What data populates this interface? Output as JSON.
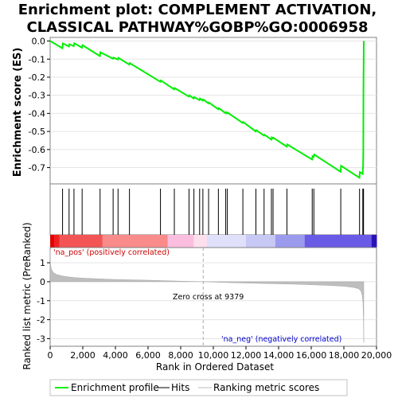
{
  "title_line1": "Enrichment plot: COMPLEMENT ACTIVATION,",
  "title_line2": "CLASSICAL PATHWAY%GOBP%GO:0006958",
  "colors": {
    "es_line": "#00ee00",
    "hit": "#000000",
    "metric_fill": "#bebebe",
    "zero_line": "#bbbbbb"
  },
  "chart_data": [
    {
      "type": "line",
      "name": "enrichment-score-panel",
      "ylabel": "Enrichment score (ES)",
      "ylim": [
        -0.79,
        0.02
      ],
      "xlim": [
        0,
        20000
      ],
      "yticks": [
        0.0,
        -0.1,
        -0.2,
        -0.3,
        -0.4,
        -0.5,
        -0.6,
        -0.7
      ],
      "ytick_labels": [
        "0.0",
        "-0.1",
        "-0.2",
        "-0.3",
        "-0.4",
        "-0.5",
        "-0.6",
        "-0.7"
      ],
      "series": [
        {
          "name": "Enrichment profile",
          "x": [
            0,
            750,
            780,
            1150,
            1180,
            1450,
            1480,
            1950,
            1980,
            3050,
            3080,
            3850,
            3880,
            4150,
            4180,
            4850,
            4880,
            6750,
            6780,
            7600,
            7630,
            8500,
            8530,
            8800,
            8830,
            9150,
            9180,
            9350,
            9380,
            9700,
            9730,
            10300,
            10330,
            10750,
            10780,
            10850,
            10880,
            11800,
            11830,
            12600,
            12630,
            13100,
            13130,
            13550,
            13580,
            13650,
            13680,
            14500,
            14530,
            16050,
            16080,
            16150,
            16180,
            17800,
            17830,
            18950,
            18980,
            19150,
            19180,
            19190,
            19200,
            19210,
            19220
          ],
          "y": [
            0.0,
            -0.04,
            -0.013,
            -0.03,
            -0.018,
            -0.028,
            -0.012,
            -0.037,
            -0.023,
            -0.083,
            -0.062,
            -0.098,
            -0.092,
            -0.102,
            -0.093,
            -0.13,
            -0.122,
            -0.225,
            -0.218,
            -0.267,
            -0.26,
            -0.307,
            -0.3,
            -0.318,
            -0.31,
            -0.327,
            -0.318,
            -0.329,
            -0.323,
            -0.345,
            -0.34,
            -0.377,
            -0.371,
            -0.399,
            -0.394,
            -0.4,
            -0.396,
            -0.453,
            -0.448,
            -0.5,
            -0.493,
            -0.523,
            -0.518,
            -0.545,
            -0.533,
            -0.538,
            -0.535,
            -0.584,
            -0.572,
            -0.655,
            -0.637,
            -0.641,
            -0.628,
            -0.723,
            -0.69,
            -0.756,
            -0.725,
            -0.735,
            -0.685,
            -0.61,
            -0.27,
            -0.15,
            0.0
          ]
        }
      ]
    },
    {
      "type": "scatter",
      "name": "hits-panel",
      "series": [
        {
          "name": "Hits",
          "x": [
            760,
            1160,
            1460,
            1960,
            3060,
            3860,
            4160,
            4860,
            6760,
            7610,
            8510,
            8810,
            9160,
            9360,
            9710,
            10310,
            10760,
            10860,
            11810,
            12610,
            13110,
            13560,
            13660,
            14510,
            16060,
            16160,
            17810,
            18960,
            19160,
            19190,
            19205
          ]
        }
      ]
    },
    {
      "type": "area",
      "name": "ranked-metric-panel",
      "xlabel": "Rank in Ordered Dataset",
      "ylabel": "Ranked list metric (PreRanked)",
      "ylim": [
        -3.4,
        1.8
      ],
      "xlim": [
        0,
        20000
      ],
      "yticks": [
        1,
        0,
        -1,
        -2,
        -3
      ],
      "ytick_labels": [
        "1",
        "0",
        "-1",
        "-2",
        "-3"
      ],
      "xticks": [
        0,
        2000,
        4000,
        6000,
        8000,
        10000,
        12000,
        14000,
        16000,
        18000,
        20000
      ],
      "xtick_labels": [
        "0",
        "2,000",
        "4,000",
        "6,000",
        "8,000",
        "10,000",
        "12,000",
        "14,000",
        "16,000",
        "18,000",
        "20,000"
      ],
      "series": [
        {
          "name": "Ranking metric scores",
          "x": [
            0,
            20,
            80,
            200,
            400,
            700,
            1000,
            1500,
            2000,
            3000,
            4000,
            6000,
            8000,
            9379,
            11000,
            13000,
            15000,
            17000,
            18000,
            18600,
            18900,
            19050,
            19120,
            19170,
            19200,
            19220
          ],
          "y": [
            1.7,
            0.95,
            0.65,
            0.48,
            0.38,
            0.31,
            0.27,
            0.22,
            0.19,
            0.15,
            0.12,
            0.08,
            0.03,
            0.0,
            -0.05,
            -0.09,
            -0.13,
            -0.19,
            -0.24,
            -0.3,
            -0.37,
            -0.5,
            -0.7,
            -1.1,
            -2.0,
            -3.2
          ]
        }
      ],
      "zero_cross": 9379
    }
  ],
  "annotations": {
    "pos_label": "'na_pos' (positively correlated)",
    "neg_label": "'na_neg' (negatively correlated)",
    "zero_cross": "Zero cross at 9379"
  },
  "legend": {
    "items": [
      {
        "label": "Enrichment profile",
        "color": "#00ee00"
      },
      {
        "label": "Hits",
        "color": "#000000"
      },
      {
        "label": "Ranking metric scores",
        "color": "#bebebe"
      }
    ]
  }
}
